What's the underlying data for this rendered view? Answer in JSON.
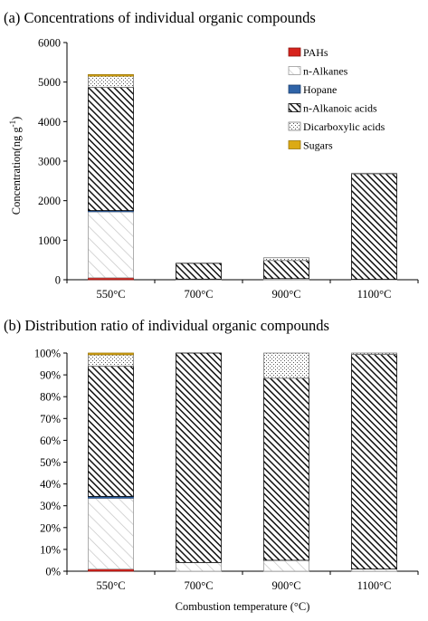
{
  "chart_data": [
    {
      "type": "bar",
      "stacked": true,
      "title": "(a) Concentrations of individual organic compounds",
      "xlabel": "",
      "ylabel": "Concentration(ng g-1)",
      "ylabel_main": "Concentration(ng g",
      "ylabel_sup": "-1",
      "ylabel_close": ")",
      "ylim": [
        0,
        6000
      ],
      "yticks": [
        0,
        1000,
        2000,
        3000,
        4000,
        5000,
        6000
      ],
      "ytick_labels": [
        "0",
        "1000",
        "2000",
        "3000",
        "4000",
        "5000",
        "6000"
      ],
      "categories": [
        "550°C",
        "700°C",
        "900°C",
        "1100°C"
      ],
      "grid": false,
      "legend_position": "top-right",
      "series": [
        {
          "name": "PAHs",
          "pattern": "solid-red",
          "color": "#d7231d",
          "values": [
            50,
            0,
            0,
            0
          ]
        },
        {
          "name": "n-Alkanes",
          "pattern": "light-diagonal",
          "color": "#c8c8c8",
          "values": [
            1670,
            15,
            28,
            10
          ]
        },
        {
          "name": "Hopane",
          "pattern": "solid-blue",
          "color": "#2f64a8",
          "values": [
            30,
            0,
            0,
            0
          ]
        },
        {
          "name": "n-Alkanoic acids",
          "pattern": "dense-diagonal",
          "color": "#1a1a1a",
          "values": [
            3120,
            400,
            460,
            2670
          ]
        },
        {
          "name": "Dicarboxylic acids",
          "pattern": "dots",
          "color": "#777777",
          "values": [
            280,
            0,
            68,
            15
          ]
        },
        {
          "name": "Sugars",
          "pattern": "solid-gold",
          "color": "#dcaa14",
          "values": [
            40,
            0,
            0,
            0
          ]
        }
      ]
    },
    {
      "type": "bar",
      "stacked": true,
      "percent": true,
      "title": "(b) Distribution ratio of individual organic compounds",
      "xlabel": "Combustion temperature (°C)",
      "ylabel": "",
      "ylim": [
        0,
        100
      ],
      "yticks": [
        0,
        10,
        20,
        30,
        40,
        50,
        60,
        70,
        80,
        90,
        100
      ],
      "ytick_labels": [
        "0%",
        "10%",
        "20%",
        "30%",
        "40%",
        "50%",
        "60%",
        "70%",
        "80%",
        "90%",
        "100%"
      ],
      "categories": [
        "550°C",
        "700°C",
        "900°C",
        "1100°C"
      ],
      "grid": false,
      "legend_position": "none",
      "series": [
        {
          "name": "PAHs",
          "pattern": "solid-red",
          "color": "#d7231d",
          "values": [
            1.0,
            0,
            0,
            0
          ]
        },
        {
          "name": "n-Alkanes",
          "pattern": "light-diagonal",
          "color": "#c8c8c8",
          "values": [
            32.5,
            4.0,
            5.0,
            1.0
          ]
        },
        {
          "name": "Hopane",
          "pattern": "solid-blue",
          "color": "#2f64a8",
          "values": [
            0.8,
            0,
            0,
            0
          ]
        },
        {
          "name": "n-Alkanoic acids",
          "pattern": "dense-diagonal",
          "color": "#1a1a1a",
          "values": [
            59.7,
            96.0,
            83.5,
            98.4
          ]
        },
        {
          "name": "Dicarboxylic acids",
          "pattern": "dots",
          "color": "#777777",
          "values": [
            5.2,
            0,
            11.5,
            0.6
          ]
        },
        {
          "name": "Sugars",
          "pattern": "solid-gold",
          "color": "#dcaa14",
          "values": [
            0.8,
            0,
            0,
            0
          ]
        }
      ]
    }
  ]
}
